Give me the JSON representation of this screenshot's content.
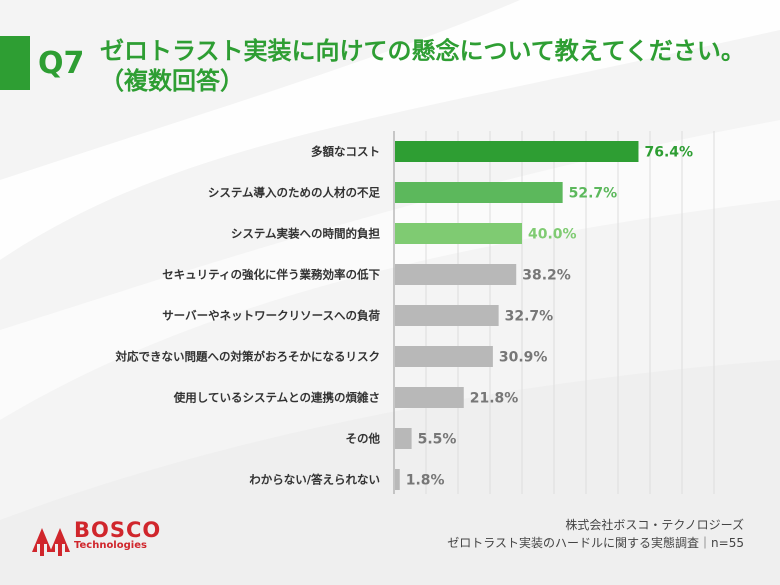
{
  "question": {
    "number": "Q7",
    "title_line1": "ゼロトラスト実装に向けての懸念について教えてください。",
    "title_line2": "（複数回答）"
  },
  "chart_data": {
    "type": "bar",
    "orientation": "horizontal",
    "categories": [
      "多額なコスト",
      "システム導入のための人材の不足",
      "システム実装への時間的負担",
      "セキュリティの強化に伴う業務効率の低下",
      "サーバーやネットワークリソースへの負荷",
      "対応できない問題への対策がおろそかになるリスク",
      "使用しているシステムとの連携の煩雑さ",
      "その他",
      "わからない/答えられない"
    ],
    "values": [
      76.4,
      52.7,
      40.0,
      38.2,
      32.7,
      30.9,
      21.8,
      5.5,
      1.8
    ],
    "value_labels": [
      "76.4%",
      "52.7%",
      "40.0%",
      "38.2%",
      "32.7%",
      "30.9%",
      "21.8%",
      "5.5%",
      "1.8%"
    ],
    "bar_colors": [
      "#2e9e33",
      "#5cb85c",
      "#7fcb72",
      "#b8b8b8",
      "#b8b8b8",
      "#b8b8b8",
      "#b8b8b8",
      "#b8b8b8",
      "#b8b8b8"
    ],
    "label_colors": [
      "#2e9e33",
      "#5cb85c",
      "#7fcb72",
      "#777777",
      "#777777",
      "#777777",
      "#777777",
      "#777777",
      "#777777"
    ],
    "xlim": [
      0,
      100
    ],
    "grid": true,
    "legend": "none"
  },
  "brand": {
    "name": "BOSCO",
    "sub": "Technologies",
    "color": "#d0262c"
  },
  "footer": {
    "line1": "株式会社ボスコ・テクノロジーズ",
    "line2": "ゼロトラスト実装のハードルに関する実態調査｜n=55"
  }
}
